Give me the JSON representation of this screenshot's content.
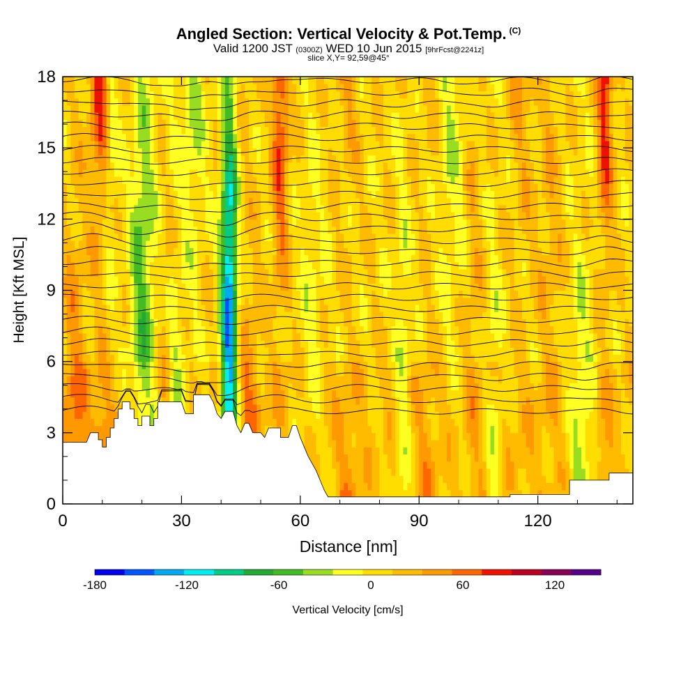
{
  "chart_data": {
    "type": "heatmap",
    "title": "Angled Section: Vertical Velocity & Pot.Temp.",
    "title_mark": "(C)",
    "subtitle_valid": "Valid 1200 JST",
    "subtitle_utc": "(0300Z)",
    "subtitle_date": "WED 10 Jun 2015",
    "subtitle_fcst": "[9hrFcst@2241z]",
    "slice_label": "slice X,Y= 92,59@45°",
    "xlabel": "Distance [nm]",
    "ylabel": "Height [Kft MSL]",
    "xlim": [
      0,
      144
    ],
    "ylim": [
      0,
      18
    ],
    "x_ticks": [
      0,
      30,
      60,
      90,
      120
    ],
    "y_ticks": [
      0,
      3,
      6,
      9,
      12,
      15,
      18
    ],
    "colorbar": {
      "label": "Vertical Velocity [cm/s]",
      "range": [
        -180,
        150
      ],
      "tick_values": [
        -180,
        -120,
        -60,
        0,
        60,
        120
      ],
      "tick_labels": [
        "-180",
        "-120",
        "-60",
        "0",
        "60",
        "120"
      ],
      "colors": [
        "#0000ee",
        "#0055ff",
        "#00aaee",
        "#00eeee",
        "#00cc88",
        "#22aa33",
        "#44bb22",
        "#99dd22",
        "#ffff22",
        "#ffdd00",
        "#ffbb00",
        "#ff9900",
        "#ff6600",
        "#ee1100",
        "#bb0022",
        "#880055",
        "#550088"
      ]
    },
    "terrain_kft": [
      [
        0,
        2.6
      ],
      [
        6,
        2.6
      ],
      [
        7,
        3.0
      ],
      [
        9,
        3.0
      ],
      [
        9,
        2.7
      ],
      [
        10,
        2.7
      ],
      [
        10,
        2.4
      ],
      [
        11,
        2.4
      ],
      [
        11,
        2.8
      ],
      [
        12,
        2.8
      ],
      [
        12,
        3.2
      ],
      [
        13,
        3.2
      ],
      [
        13,
        3.6
      ],
      [
        14,
        3.6
      ],
      [
        14,
        4.0
      ],
      [
        15,
        4.0
      ],
      [
        15,
        4.3
      ],
      [
        17,
        4.3
      ],
      [
        17,
        4.0
      ],
      [
        18,
        4.0
      ],
      [
        18,
        3.6
      ],
      [
        19,
        3.6
      ],
      [
        19,
        3.3
      ],
      [
        20,
        3.3
      ],
      [
        20,
        3.7
      ],
      [
        22,
        3.7
      ],
      [
        22,
        3.3
      ],
      [
        23,
        3.3
      ],
      [
        23,
        3.6
      ],
      [
        24,
        3.6
      ],
      [
        24,
        4.3
      ],
      [
        30,
        4.3
      ],
      [
        31,
        3.8
      ],
      [
        33,
        3.8
      ],
      [
        33,
        4.6
      ],
      [
        37,
        4.6
      ],
      [
        38,
        4.3
      ],
      [
        39,
        3.8
      ],
      [
        40,
        3.6
      ],
      [
        41,
        3.9
      ],
      [
        43,
        3.9
      ],
      [
        44,
        3.3
      ],
      [
        45,
        3.0
      ],
      [
        46,
        3.4
      ],
      [
        47,
        3.4
      ],
      [
        48,
        3.0
      ],
      [
        50,
        3.0
      ],
      [
        51,
        2.8
      ],
      [
        52,
        3.2
      ],
      [
        55,
        3.2
      ],
      [
        55,
        2.8
      ],
      [
        57,
        2.8
      ],
      [
        58,
        3.3
      ],
      [
        59,
        3.3
      ],
      [
        60,
        2.8
      ],
      [
        61,
        2.4
      ],
      [
        62,
        2.0
      ],
      [
        63,
        1.7
      ],
      [
        64,
        1.4
      ],
      [
        65,
        1.0
      ],
      [
        66,
        0.6
      ],
      [
        67,
        0.3
      ],
      [
        113,
        0.3
      ],
      [
        113,
        0.4
      ],
      [
        128,
        0.4
      ],
      [
        128,
        1.0
      ],
      [
        138,
        1.0
      ],
      [
        138,
        1.3
      ],
      [
        144,
        1.3
      ]
    ],
    "velocity_columns": [
      {
        "x": 3,
        "w": 3,
        "v": 40
      },
      {
        "x": 10,
        "w": 3,
        "v": 120
      },
      {
        "x": 12,
        "w": 2,
        "v": -60
      },
      {
        "x": 20,
        "w": 3,
        "v": -60
      },
      {
        "x": 27,
        "w": 3.5,
        "v": -80
      },
      {
        "x": 26,
        "w": 2,
        "v": 70
      },
      {
        "x": 33,
        "w": 3,
        "v": -40
      },
      {
        "x": 42,
        "w": 2,
        "v": -150
      },
      {
        "x": 47,
        "w": 3,
        "v": 40
      },
      {
        "x": 55,
        "w": 2,
        "v": 70
      },
      {
        "x": 63,
        "w": 3,
        "v": -20
      },
      {
        "x": 72,
        "w": 3,
        "v": 40
      },
      {
        "x": 86,
        "w": 2,
        "v": -30
      },
      {
        "x": 92,
        "w": 3,
        "v": 30
      },
      {
        "x": 98,
        "w": 3,
        "v": -30
      },
      {
        "x": 104,
        "w": 2,
        "v": 20
      },
      {
        "x": 109,
        "w": 2,
        "v": -30
      },
      {
        "x": 116,
        "w": 3,
        "v": 30
      },
      {
        "x": 123,
        "w": 3,
        "v": 20
      },
      {
        "x": 131,
        "w": 3,
        "v": -50
      },
      {
        "x": 137,
        "w": 2,
        "v": 90
      }
    ],
    "isentropes": {
      "count": 30,
      "base_kft": 3.9,
      "spacing_kft": 0.48
    }
  }
}
